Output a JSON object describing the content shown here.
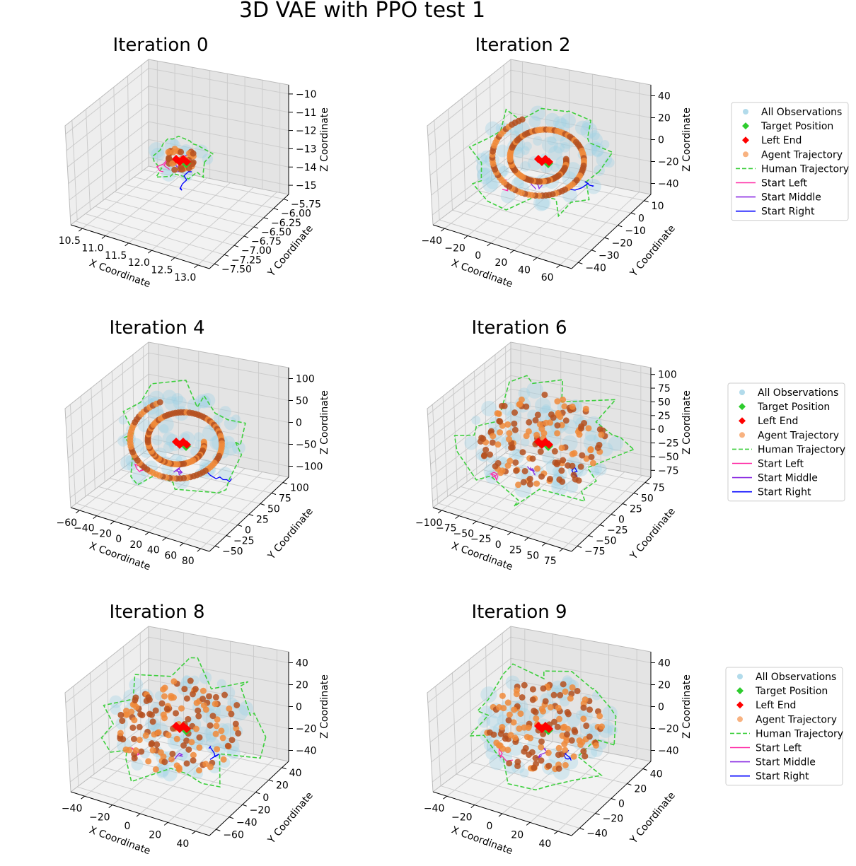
{
  "title": "3D VAE with PPO test 1",
  "legend": {
    "items": [
      {
        "key": "obs",
        "label": "All Observations",
        "color": "#9fd2e6",
        "marker": "circle"
      },
      {
        "key": "target",
        "label": "Target Position",
        "color": "#2ecc2e",
        "marker": "diamond"
      },
      {
        "key": "leftend",
        "label": "Left End",
        "color": "#ff0000",
        "marker": "diamond"
      },
      {
        "key": "agent",
        "label": "Agent Trajectory",
        "color": "#f7a46a",
        "marker": "circle"
      },
      {
        "key": "human",
        "label": "Human Trajectory",
        "color": "#3ecf3e",
        "marker": "dashed"
      },
      {
        "key": "sl",
        "label": "Start Left",
        "color": "#ff2aa6",
        "marker": "line"
      },
      {
        "key": "sm",
        "label": "Start Middle",
        "color": "#8a2be2",
        "marker": "line"
      },
      {
        "key": "sr",
        "label": "Start Right",
        "color": "#0000ff",
        "marker": "line"
      }
    ]
  },
  "chart_data": [
    {
      "type": "scatter",
      "projection": "3d",
      "title": "Iteration 0",
      "xlabel": "X Coordinate",
      "ylabel": "Y Coordinate",
      "zlabel": "Z Coordinate",
      "xticks": [
        "10.5",
        "11.0",
        "11.5",
        "12.0",
        "12.5",
        "13.0"
      ],
      "yticks": [
        "−7.50",
        "−7.25",
        "−7.00",
        "−6.75",
        "−6.50",
        "−6.25",
        "−6.00",
        "−5.75"
      ],
      "zticks": [
        "−15",
        "−14",
        "−13",
        "−12",
        "−11",
        "−10"
      ],
      "grid": true,
      "legend": false
    },
    {
      "type": "scatter",
      "projection": "3d",
      "title": "Iteration 2",
      "xlabel": "X Coordinate",
      "ylabel": "Y Coordinate",
      "zlabel": "Z Coordinate",
      "xticks": [
        "−40",
        "−20",
        "0",
        "20",
        "40",
        "60"
      ],
      "yticks": [
        "−40",
        "−30",
        "−20",
        "−10",
        "0",
        "10"
      ],
      "zticks": [
        "−40",
        "−20",
        "0",
        "20",
        "40"
      ],
      "grid": true,
      "legend": "right"
    },
    {
      "type": "scatter",
      "projection": "3d",
      "title": "Iteration 4",
      "xlabel": "X Coordinate",
      "ylabel": "Y Coordinate",
      "zlabel": "Z Coordinate",
      "xticks": [
        "−60",
        "−40",
        "−20",
        "0",
        "20",
        "40",
        "60",
        "80"
      ],
      "yticks": [
        "−50",
        "−25",
        "0",
        "25",
        "50",
        "75",
        "100"
      ],
      "zticks": [
        "−100",
        "−50",
        "0",
        "50",
        "100"
      ],
      "grid": true,
      "legend": false
    },
    {
      "type": "scatter",
      "projection": "3d",
      "title": "Iteration 6",
      "xlabel": "X Coordinate",
      "ylabel": "Y Coordinate",
      "zlabel": "Z Coordinate",
      "xticks": [
        "−100",
        "−75",
        "−50",
        "−25",
        "0",
        "25",
        "50",
        "75"
      ],
      "yticks": [
        "−75",
        "−50",
        "−25",
        "0",
        "25",
        "50",
        "75"
      ],
      "zticks": [
        "−75",
        "−50",
        "−25",
        "0",
        "25",
        "50",
        "75",
        "100"
      ],
      "grid": true,
      "legend": "right"
    },
    {
      "type": "scatter",
      "projection": "3d",
      "title": "Iteration 8",
      "xlabel": "X Coordinate",
      "ylabel": "Y Coordinate",
      "zlabel": "Z Coordinate",
      "xticks": [
        "−40",
        "−20",
        "0",
        "20",
        "40"
      ],
      "yticks": [
        "−60",
        "−40",
        "−20",
        "0",
        "20",
        "40"
      ],
      "zticks": [
        "−40",
        "−20",
        "0",
        "20",
        "40"
      ],
      "grid": true,
      "legend": false
    },
    {
      "type": "scatter",
      "projection": "3d",
      "title": "Iteration 9",
      "xlabel": "X Coordinate",
      "ylabel": "Y Coordinate",
      "zlabel": "Z Coordinate",
      "xticks": [
        "−40",
        "−20",
        "0",
        "20",
        "40"
      ],
      "yticks": [
        "−40",
        "−20",
        "0",
        "20",
        "40"
      ],
      "zticks": [
        "−40",
        "−20",
        "0",
        "20",
        "40"
      ],
      "grid": true,
      "legend": "right"
    }
  ]
}
